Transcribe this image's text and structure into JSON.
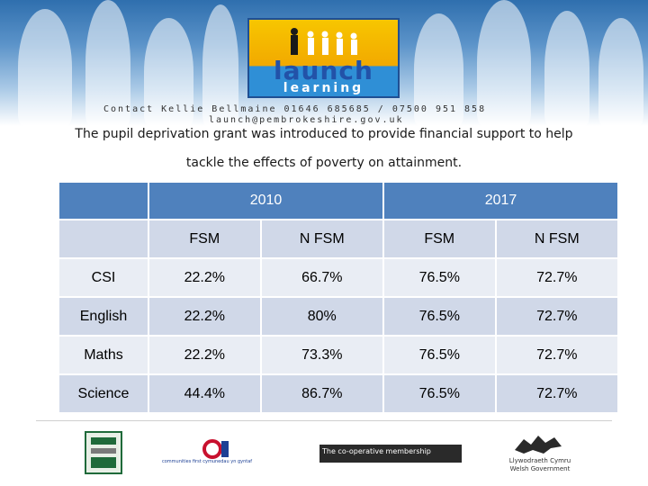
{
  "banner": {
    "logo_text": "launch",
    "logo_subtext": "learning",
    "contact_line1": "Contact Kellie Bellmaine  01646 685685 / 07500 951 858",
    "contact_line2": "launch@pembrokeshire.gov.uk"
  },
  "intro": {
    "line1": "The pupil deprivation grant was introduced to provide financial support to help",
    "line2": "tackle the effects of poverty on attainment."
  },
  "table": {
    "years": [
      "2010",
      "2017"
    ],
    "columns": [
      "FSM",
      "N FSM",
      "FSM",
      "N FSM"
    ],
    "rows": [
      {
        "label": "CSI",
        "values": [
          "22.2%",
          "66.7%",
          "76.5%",
          "72.7%"
        ]
      },
      {
        "label": "English",
        "values": [
          "22.2%",
          "80%",
          "76.5%",
          "72.7%"
        ]
      },
      {
        "label": "Maths",
        "values": [
          "22.2%",
          "73.3%",
          "76.5%",
          "72.7%"
        ]
      },
      {
        "label": "Science",
        "values": [
          "44.4%",
          "86.7%",
          "76.5%",
          "72.7%"
        ]
      }
    ]
  },
  "sponsors": {
    "sponsor2_text": "communities first cymunedau yn gyntaf",
    "sponsor3_text": "The co-operative membership",
    "sponsor4_line1": "Llywodraeth Cymru",
    "sponsor4_line2": "Welsh Government"
  },
  "colors": {
    "header_blue": "#4f81bd",
    "row_alt": "#d0d8e8",
    "row_plain": "#e9edf4"
  }
}
